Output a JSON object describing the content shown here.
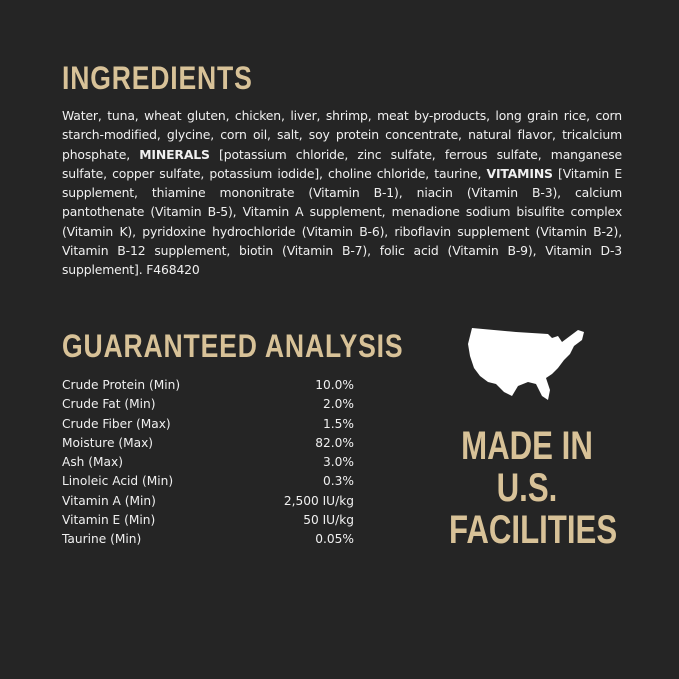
{
  "ingredients": {
    "title": "INGREDIENTS",
    "text_1": "Water, tuna, wheat gluten, chicken, liver, shrimp, meat by-products, long grain rice, corn starch-modified, glycine, corn oil, salt, soy protein concentrate, natural flavor, tricalcium phosphate, ",
    "minerals_label": "MINERALS",
    "text_2": " [potassium chloride, zinc sulfate, ferrous sulfate, manganese sulfate, copper sulfate, potassium iodide], choline chloride, taurine, ",
    "vitamins_label": "VITAMINS",
    "text_3": " [Vitamin E supplement, thiamine mononitrate (Vitamin B-1), niacin (Vitamin B-3), calcium pantothenate (Vitamin B-5), Vitamin A supplement, menadione sodium bisulfite complex (Vitamin K), pyridoxine hydrochloride (Vitamin B-6), riboflavin supplement (Vitamin B-2), Vitamin B-12 supplement, biotin (Vitamin B-7), folic acid (Vitamin B-9), Vitamin D-3 supplement]. F468420"
  },
  "analysis": {
    "title": "GUARANTEED ANALYSIS",
    "rows": [
      {
        "label": "Crude Protein (Min)",
        "value": "10.0%"
      },
      {
        "label": "Crude Fat (Min)",
        "value": "2.0%"
      },
      {
        "label": "Crude Fiber (Max)",
        "value": "1.5%"
      },
      {
        "label": "Moisture (Max)",
        "value": "82.0%"
      },
      {
        "label": "Ash (Max)",
        "value": "3.0%"
      },
      {
        "label": "Linoleic Acid (Min)",
        "value": "0.3%"
      },
      {
        "label": "Vitamin A (Min)",
        "value": "2,500 IU/kg"
      },
      {
        "label": "Vitamin E (Min)",
        "value": "50 IU/kg"
      },
      {
        "label": "Taurine (Min)",
        "value": "0.05%"
      }
    ]
  },
  "origin": {
    "icon": "usa-map-icon",
    "lines": [
      "MADE IN",
      "U.S.",
      "FACILITIES"
    ]
  },
  "colors": {
    "background": "#252525",
    "accent": "#d8c298",
    "text": "#f0f0f0"
  }
}
